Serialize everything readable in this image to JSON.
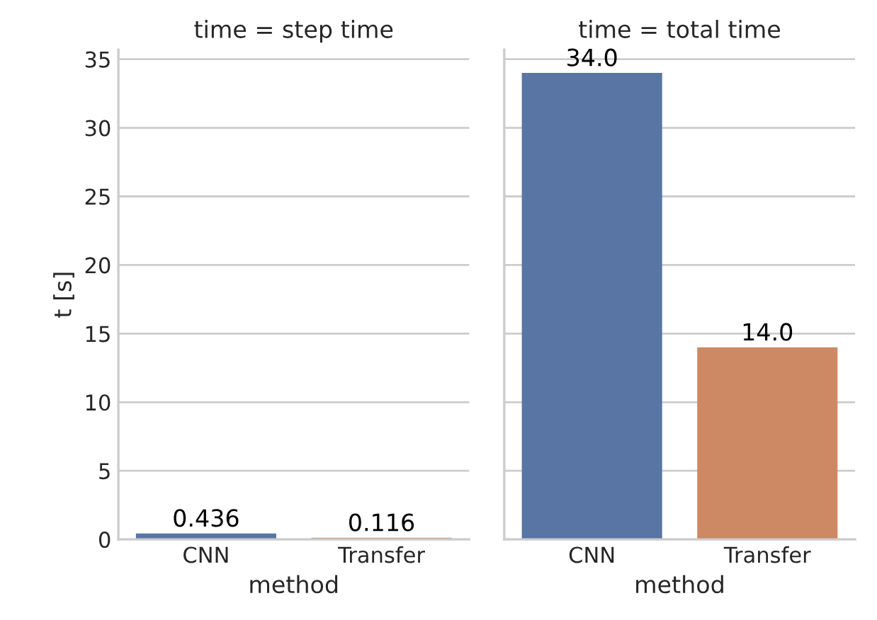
{
  "chart_data": [
    {
      "type": "bar",
      "title": "time = step time",
      "xlabel": "method",
      "ylabel": "t [s]",
      "categories": [
        "CNN",
        "Transfer"
      ],
      "values": [
        0.436,
        0.116
      ],
      "colors": [
        "#5875a4",
        "#cc8963"
      ],
      "value_labels": [
        "0.436",
        "0.116"
      ],
      "ylim": [
        0,
        35.7
      ],
      "yticks": [
        0,
        5,
        10,
        15,
        20,
        25,
        30,
        35
      ],
      "grid": "y"
    },
    {
      "type": "bar",
      "title": "time = total time",
      "xlabel": "method",
      "categories": [
        "CNN",
        "Transfer"
      ],
      "values": [
        34.0,
        14.0
      ],
      "colors": [
        "#5875a4",
        "#cc8963"
      ],
      "value_labels": [
        "34.0",
        "14.0"
      ],
      "ylim": [
        0,
        35.7
      ],
      "yticks": [
        0,
        5,
        10,
        15,
        20,
        25,
        30,
        35
      ],
      "grid": "y",
      "tick_labels": "x"
    }
  ]
}
